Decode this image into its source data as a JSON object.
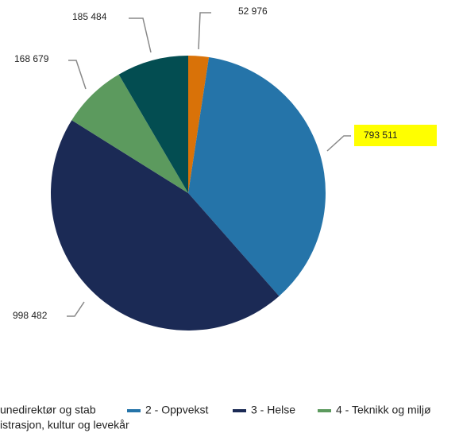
{
  "chart_data": {
    "type": "pie",
    "categories": [
      "unedirektør og stab",
      "2 - Oppvekst",
      "3 - Helse",
      "4 - Teknikk og miljø",
      "istrasjon, kultur og levekår"
    ],
    "values": [
      52976,
      793511,
      998482,
      168679,
      185484
    ],
    "value_labels": [
      "52 976",
      "793 511",
      "998 482",
      "168 679",
      "185 484"
    ],
    "colors": [
      "#d97208",
      "#2574a9",
      "#1b2a55",
      "#5c9a5e",
      "#034d51"
    ]
  }
}
